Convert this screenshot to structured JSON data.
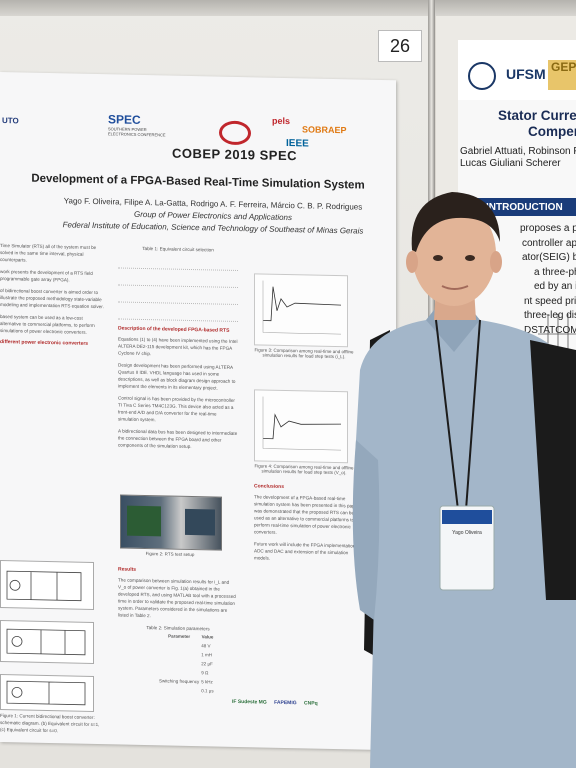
{
  "board_number": "26",
  "left_poster": {
    "logos": {
      "spec": "SPEC",
      "spec_subtitle": "SOUTHERN POWER ELECTRONICS CONFERENCE",
      "cobep": "COBEP 2019 SPEC",
      "pels": "pels",
      "sobraep": "SOBRAEP",
      "ieee": "IEEE",
      "left_institution": "UTO"
    },
    "title": "Development of a FPGA-Based Real-Time Simulation System",
    "authors": "Yago F. Oliveira, Filipe A. La-Gatta, Rodrigo A. F. Ferreira, Márcio C. B. P. Rodrigues",
    "group": "Group of Power Electronics and Applications",
    "institute": "Federal Institute of Education, Science and Technology of Southeast of Minas Gerais",
    "sections": {
      "intro_text": "Time Simulator (RTS) all of the system must be solved in the same time interval, physical counterparts.",
      "work_text": "work presents the development of a RTS field programmable gate array (FPGA).",
      "boost_text": "of bidirectional boost converter is aimed order to illustrate the proposed methodology state-variable modeling and implementation RTS equation solver.",
      "commercial_text": "based system can be used as a low-cost alternative to commercial platforms, to perform simulations of power electronic converters.",
      "power_heading": "different power electronic converters",
      "table1_caption": "Table 1: Equivalent circuit selection",
      "fpga_heading": "Description of the developed FPGA-based RTS",
      "fpga_bullets": [
        "Equations (1) to (4) have been implemented using the Intel ALTERA DE2-115 development kit, which has the FPGA Cyclone IV chip.",
        "Design development has been performed using ALTERA Quartus II IDE. VHDL language has used in some descriptions, as well as block diagram design approach to implement the elements in its elementary project.",
        "Control signal is has been provided by the microcontroller TI Tiva C Series TM4C123G. This device also acted as a front-end A/D and D/A converter for the real-time simulation system.",
        "A bidirectional data bus has been designed to intermediate the connection between the FPGA board and other components of the simulation setup."
      ],
      "fig2_caption": "Figure 2: RTS test setup",
      "results_heading": "Results",
      "results_text": "The comparison between simulation results for i_L and V_o of power converter is Fig. 1(a) obtained in the developed RTS, and using MATLAB tool with a processed time in order to validate the proposed real-time simulation system. Parameters considered in the simulations are listed in Table 2.",
      "table2_caption": "Table 2: Simulation parameters",
      "table2_headers": [
        "Parameter",
        "Value"
      ],
      "table2_rows": [
        [
          "",
          "48 V"
        ],
        [
          "",
          "1 mH"
        ],
        [
          "",
          "22 μF"
        ],
        [
          "",
          "9 Ω"
        ],
        [
          "Switching frequency",
          "5 kHz"
        ],
        [
          "",
          "0.1 μs"
        ]
      ],
      "fig3_caption": "Figure 3: Comparison among real-time and offline simulation results for load step tests (i_L).",
      "fig4_caption": "Figure 4: Comparison among real-time and offline simulation results for load step tests (V_o).",
      "conclusions_heading": "Conclusions",
      "conclusions_text": "The development of a FPGA-based real-time simulation system has been presented in this paper. It was demonstrated that the proposed RTS can be used as an alternative to commercial platforms to perform real-time simulation of power electronic converters.",
      "future_text": "Future work will include the FPGA implementation of ADC and DAC and extension of the simulation models.",
      "fig1_caption": "Figure 1: Current bidirectional boost converter: schematic diagram. (b) Equivalent circuit for s=1, (c) Equivalent circuit for s=0.",
      "footer_logos": [
        "IF Sudeste MG",
        "FAPEMIG",
        "CNPq"
      ]
    }
  },
  "right_poster": {
    "institution": "UFSM",
    "partner_logo": "GEP",
    "title_line1": "Stator Curren",
    "title_line2": "Compens",
    "authors_line1": "Gabriel Attuati, Robinson Figue",
    "authors_line2": "Lucas Giuliani Scherer",
    "section_number": "1",
    "section_title": "INTRODUCTION",
    "text_lines": [
      "proposes a propo",
      "controller applie",
      "ator(SEIG) base",
      "a three-phase",
      "ed by an indu",
      "nt speed prime",
      "three-leg dis",
      "DSTATCOM"
    ]
  },
  "person": {
    "badge_text": "Yago Oliveira",
    "lanyard_color": "#1c1c1c",
    "shirt_color": "#a3b6c9",
    "backpack_color": "#1a1a1a",
    "hair_color": "#2a211c"
  },
  "colors": {
    "title_red": "#b02a2a",
    "cobep_red": "#c0262c",
    "ufsm_blue": "#1a3766"
  }
}
